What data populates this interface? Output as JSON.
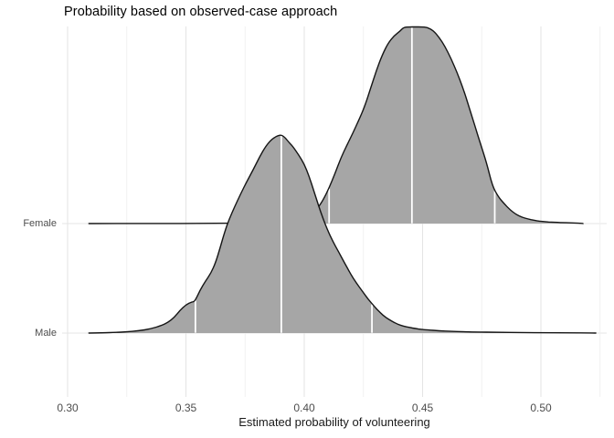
{
  "chart_data": {
    "type": "area",
    "variant": "ridgeline-density",
    "title": "Probability based on observed-case approach",
    "xlabel": "Estimated probability of volunteering",
    "ylabel": "",
    "categories": [
      "Female",
      "Male"
    ],
    "xlim": [
      0.2977,
      0.5278
    ],
    "x_ticks": {
      "major": [
        0.3,
        0.35,
        0.4,
        0.45,
        0.5
      ],
      "labels": [
        "0.30",
        "0.35",
        "0.40",
        "0.45",
        "0.50"
      ],
      "minor": [
        0.325,
        0.375,
        0.425,
        0.475,
        0.525
      ]
    },
    "grid": "major-and-minor",
    "legend": false,
    "colors": {
      "fill": "#a6a6a6",
      "stroke": "#151515",
      "quantile_line": "#ffffff",
      "grid_major": "#e5e5e5",
      "grid_minor": "#f0f0f0",
      "axis_text": "#4d4d4d",
      "title_text": "#000000"
    },
    "series": [
      {
        "name": "Female",
        "quantiles": [
          0.4105,
          0.4455,
          0.4805
        ],
        "points": [
          [
            0.309,
            0
          ],
          [
            0.335,
            0
          ],
          [
            0.36,
            0.001
          ],
          [
            0.38,
            0.003
          ],
          [
            0.392,
            0.007
          ],
          [
            0.398,
            0.014
          ],
          [
            0.402,
            0.037
          ],
          [
            0.4045,
            0.065
          ],
          [
            0.406,
            0.083
          ],
          [
            0.408,
            0.12
          ],
          [
            0.4105,
            0.18
          ],
          [
            0.413,
            0.253
          ],
          [
            0.4155,
            0.332
          ],
          [
            0.418,
            0.396
          ],
          [
            0.4205,
            0.456
          ],
          [
            0.423,
            0.521
          ],
          [
            0.4255,
            0.59
          ],
          [
            0.428,
            0.682
          ],
          [
            0.4305,
            0.774
          ],
          [
            0.433,
            0.853
          ],
          [
            0.4355,
            0.912
          ],
          [
            0.438,
            0.949
          ],
          [
            0.4405,
            0.972
          ],
          [
            0.442,
            0.991
          ],
          [
            0.4445,
            1.0
          ],
          [
            0.447,
            1.002
          ],
          [
            0.4495,
            1.0
          ],
          [
            0.452,
            0.991
          ],
          [
            0.4545,
            0.975
          ],
          [
            0.457,
            0.94
          ],
          [
            0.4595,
            0.894
          ],
          [
            0.462,
            0.834
          ],
          [
            0.4645,
            0.765
          ],
          [
            0.467,
            0.687
          ],
          [
            0.4695,
            0.594
          ],
          [
            0.472,
            0.498
          ],
          [
            0.4745,
            0.401
          ],
          [
            0.477,
            0.309
          ],
          [
            0.4795,
            0.19
          ],
          [
            0.482,
            0.135
          ],
          [
            0.4845,
            0.1
          ],
          [
            0.487,
            0.069
          ],
          [
            0.4895,
            0.046
          ],
          [
            0.492,
            0.032
          ],
          [
            0.4945,
            0.023
          ],
          [
            0.497,
            0.017
          ],
          [
            0.4995,
            0.012
          ],
          [
            0.502,
            0.009
          ],
          [
            0.5045,
            0.007
          ],
          [
            0.507,
            0.0055
          ],
          [
            0.5095,
            0.0046
          ],
          [
            0.512,
            0.0037
          ],
          [
            0.5145,
            0.0025
          ],
          [
            0.517,
            0.0014
          ],
          [
            0.5178,
            0
          ]
        ]
      },
      {
        "name": "Male",
        "quantiles": [
          0.354,
          0.3903,
          0.4286
        ],
        "points": [
          [
            0.309,
            0
          ],
          [
            0.315,
            0.0014
          ],
          [
            0.32,
            0.0032
          ],
          [
            0.325,
            0.006
          ],
          [
            0.33,
            0.0115
          ],
          [
            0.335,
            0.021
          ],
          [
            0.34,
            0.039
          ],
          [
            0.3425,
            0.055
          ],
          [
            0.345,
            0.078
          ],
          [
            0.3475,
            0.115
          ],
          [
            0.35,
            0.143
          ],
          [
            0.3525,
            0.157
          ],
          [
            0.3537,
            0.159
          ],
          [
            0.356,
            0.217
          ],
          [
            0.3583,
            0.263
          ],
          [
            0.3606,
            0.304
          ],
          [
            0.3625,
            0.355
          ],
          [
            0.3645,
            0.433
          ],
          [
            0.3664,
            0.512
          ],
          [
            0.3683,
            0.576
          ],
          [
            0.3707,
            0.641
          ],
          [
            0.373,
            0.7
          ],
          [
            0.3757,
            0.765
          ],
          [
            0.3784,
            0.825
          ],
          [
            0.3811,
            0.889
          ],
          [
            0.3838,
            0.945
          ],
          [
            0.3865,
            0.982
          ],
          [
            0.389,
            0.998
          ],
          [
            0.3905,
            1.0
          ],
          [
            0.392,
            0.986
          ],
          [
            0.3935,
            0.963
          ],
          [
            0.395,
            0.945
          ],
          [
            0.3977,
            0.899
          ],
          [
            0.4,
            0.853
          ],
          [
            0.402,
            0.793
          ],
          [
            0.404,
            0.719
          ],
          [
            0.406,
            0.645
          ],
          [
            0.408,
            0.576
          ],
          [
            0.41,
            0.516
          ],
          [
            0.412,
            0.465
          ],
          [
            0.4145,
            0.41
          ],
          [
            0.417,
            0.355
          ],
          [
            0.4195,
            0.3
          ],
          [
            0.422,
            0.253
          ],
          [
            0.4245,
            0.212
          ],
          [
            0.427,
            0.171
          ],
          [
            0.4295,
            0.136
          ],
          [
            0.432,
            0.104
          ],
          [
            0.4345,
            0.078
          ],
          [
            0.437,
            0.06
          ],
          [
            0.4395,
            0.044
          ],
          [
            0.442,
            0.035
          ],
          [
            0.4445,
            0.028
          ],
          [
            0.447,
            0.023
          ],
          [
            0.4495,
            0.018
          ],
          [
            0.452,
            0.016
          ],
          [
            0.457,
            0.0115
          ],
          [
            0.462,
            0.0088
          ],
          [
            0.467,
            0.0069
          ],
          [
            0.472,
            0.0051
          ],
          [
            0.482,
            0.0037
          ],
          [
            0.492,
            0.0023
          ],
          [
            0.502,
            0.0016
          ],
          [
            0.512,
            0.0009
          ],
          [
            0.52,
            0.0005
          ],
          [
            0.5232,
            0
          ]
        ]
      }
    ]
  }
}
